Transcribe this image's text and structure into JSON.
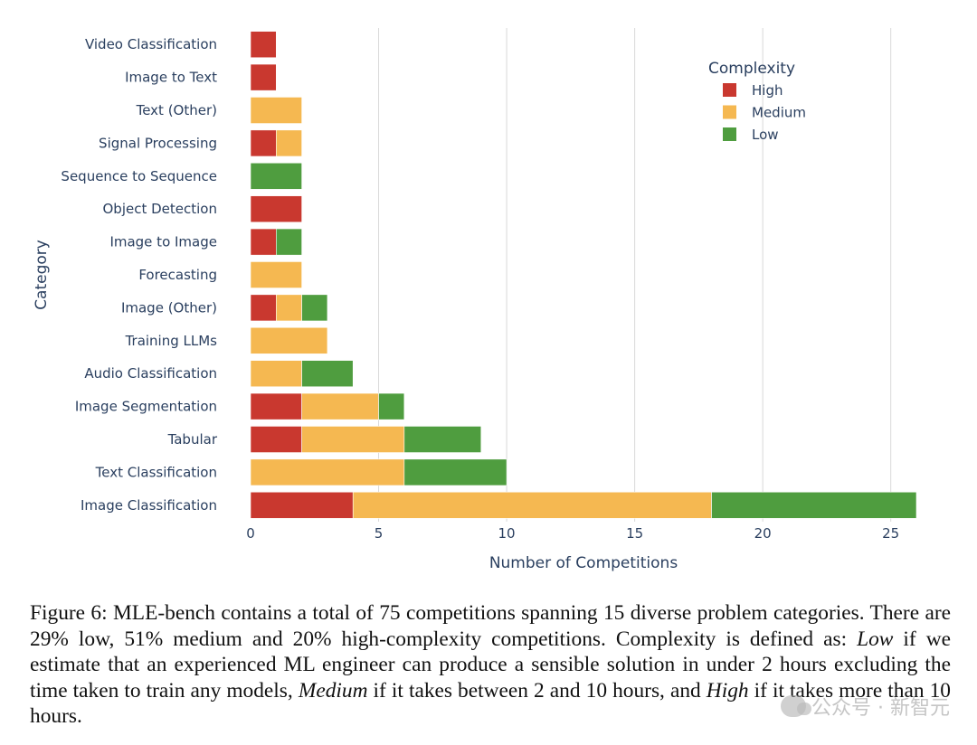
{
  "chart_data": {
    "type": "bar",
    "orientation": "horizontal",
    "stacked": true,
    "categories": [
      "Video Classification",
      "Image to Text",
      "Text (Other)",
      "Signal Processing",
      "Sequence to Sequence",
      "Object Detection",
      "Image to Image",
      "Forecasting",
      "Image (Other)",
      "Training LLMs",
      "Audio Classification",
      "Image Segmentation",
      "Tabular",
      "Text Classification",
      "Image Classification"
    ],
    "series": [
      {
        "name": "High",
        "color": "#c9382f",
        "values": [
          1,
          1,
          0,
          1,
          0,
          2,
          1,
          0,
          1,
          0,
          0,
          2,
          2,
          0,
          4
        ]
      },
      {
        "name": "Medium",
        "color": "#f5b851",
        "values": [
          0,
          0,
          2,
          1,
          0,
          0,
          0,
          2,
          1,
          3,
          2,
          3,
          4,
          6,
          14
        ]
      },
      {
        "name": "Low",
        "color": "#4f9d3f",
        "values": [
          0,
          0,
          0,
          0,
          2,
          0,
          1,
          0,
          1,
          0,
          2,
          1,
          3,
          4,
          8
        ]
      }
    ],
    "xlabel": "Number of Competitions",
    "ylabel": "Category",
    "xlim": [
      0,
      26
    ],
    "xticks": [
      0,
      5,
      10,
      15,
      20,
      25
    ],
    "grid": "vertical",
    "legend": {
      "title": "Complexity",
      "placement": "top-right"
    }
  },
  "caption": {
    "part1": "Figure 6: MLE-bench contains a total of 75 competitions spanning 15 diverse problem categories. There are 29% low, 51% medium and 20% high-complexity competitions. Complexity is defined as: ",
    "low_term": "Low",
    "part2": " if we estimate that an experienced ML engineer can produce a sensible solution in under 2 hours excluding the time taken to train any models, ",
    "medium_term": "Medium",
    "part3": " if it takes between 2 and 10 hours, and ",
    "high_term": "High",
    "part4": " if it takes more than 10 hours."
  },
  "watermark": {
    "text": "公众号 · 新智元",
    "icon": "wechat-icon"
  }
}
